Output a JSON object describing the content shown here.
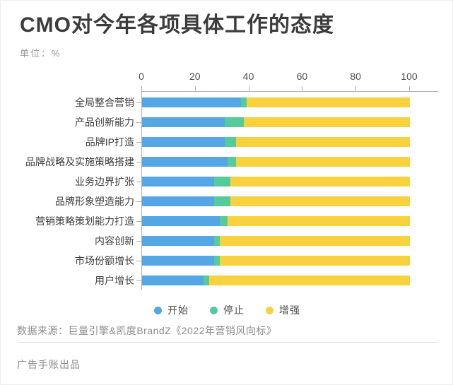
{
  "header": {
    "title": "CMO对今年各项具体工作的态度",
    "unit_label": "单位：%"
  },
  "chart_data": {
    "type": "bar",
    "variant": "horizontal-stacked",
    "title": "CMO对今年各项具体工作的态度",
    "unit": "%",
    "categories": [
      "全局整合营销",
      "产品创新能力",
      "品牌IP打造",
      "品牌战略及实施策略搭建",
      "业务边界扩张",
      "品牌形象塑造能力",
      "营销策略策划能力打造",
      "内容创新",
      "市场份额增长",
      "用户增长"
    ],
    "series": [
      {
        "name": "开始",
        "color": "#54a6e4",
        "values": [
          37,
          31,
          31,
          32,
          27,
          27,
          29,
          27,
          27,
          23
        ]
      },
      {
        "name": "停止",
        "color": "#55cb9c",
        "values": [
          2,
          7,
          4,
          3,
          6,
          6,
          3,
          2,
          2,
          2
        ]
      },
      {
        "name": "增强",
        "color": "#f8d23e",
        "values": [
          61,
          62,
          65,
          65,
          67,
          67,
          68,
          71,
          71,
          75
        ]
      }
    ],
    "x_ticks": [
      0,
      20,
      40,
      60,
      80,
      100
    ],
    "xlim": [
      0,
      100
    ],
    "grid": false,
    "legend_position": "bottom"
  },
  "footer": {
    "source": "数据来源：巨量引擎&凯度BrandZ《2022年营销风向标》",
    "credit": "广告手账出品"
  },
  "colors": {
    "start": "#54a6e4",
    "stop": "#55cb9c",
    "strengthen": "#f8d23e",
    "title_text": "#3c3c3c",
    "muted_text": "#8d8d8d",
    "axis": "#b3b3b3"
  }
}
